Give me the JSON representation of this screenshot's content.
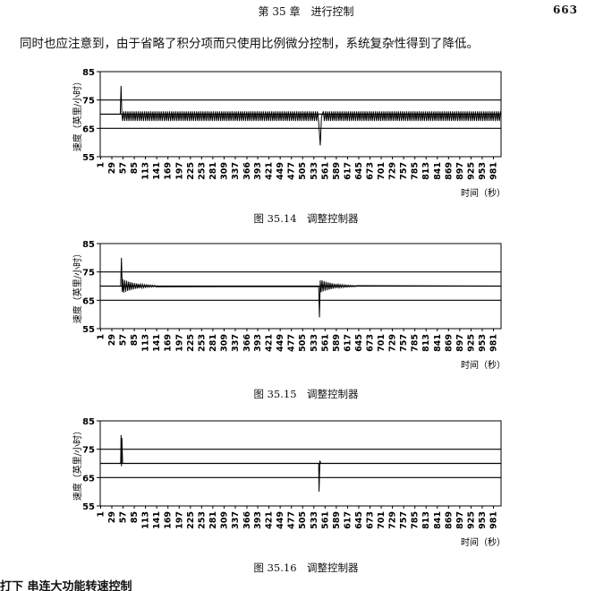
{
  "header": {
    "title": "第 35 章　进行控制",
    "page": "663"
  },
  "paragraph": "同时也应注意到，由于省略了积分项而只使用比例微分控制，系统复杂性得到了降低。",
  "figures": [
    {
      "caption": "图 35.14　调整控制器"
    },
    {
      "caption": "图 35.15　调整控制器"
    },
    {
      "caption": "图 35.16　调整控制器"
    }
  ],
  "footer_fragment": "打下  串连大功能转速控制",
  "chart_data": [
    {
      "type": "line",
      "title": "图 35.14　调整控制器",
      "ylabel": "速度（英里/小时）",
      "xlabel": "时间（秒）",
      "ylim": [
        55,
        85
      ],
      "yticks": [
        55,
        65,
        75,
        85
      ],
      "xticks": [
        1,
        29,
        57,
        85,
        113,
        141,
        169,
        197,
        225,
        253,
        281,
        309,
        337,
        366,
        393,
        421,
        449,
        477,
        505,
        533,
        561,
        589,
        617,
        645,
        673,
        701,
        729,
        757,
        785,
        813,
        841,
        869,
        897,
        925,
        953,
        981
      ],
      "reference_lines": [
        75,
        70,
        65
      ],
      "series": [
        {
          "values": [
            [
              0,
              70
            ],
            [
              50,
              70
            ],
            [
              52,
              80
            ],
            [
              54,
              70
            ],
            [
              56,
              68
            ],
            [
              1000,
              68
            ],
            [
              548,
              68
            ],
            [
              550,
              59
            ],
            [
              552,
              68
            ]
          ]
        }
      ],
      "note": "speed oscillates continuously between about 67.5 and 71 mph from t≈57 onward"
    },
    {
      "type": "line",
      "title": "图 35.15　调整控制器",
      "ylabel": "速度（英里/小时）",
      "xlabel": "时间（秒）",
      "ylim": [
        55,
        85
      ],
      "yticks": [
        55,
        65,
        75,
        85
      ],
      "xticks": [
        1,
        29,
        57,
        85,
        113,
        141,
        169,
        197,
        225,
        253,
        281,
        309,
        337,
        366,
        393,
        421,
        449,
        477,
        505,
        533,
        561,
        589,
        617,
        645,
        673,
        701,
        729,
        757,
        785,
        813,
        841,
        869,
        897,
        925,
        953,
        981
      ],
      "reference_lines": [
        75,
        70,
        65
      ],
      "series": [
        {
          "values": [
            [
              0,
              70
            ],
            [
              51,
              70
            ],
            [
              53,
              80
            ],
            [
              56,
              68
            ],
            [
              60,
              72
            ],
            [
              70,
              69
            ],
            [
              90,
              70
            ],
            [
              1000,
              70
            ],
            [
              545,
              70
            ],
            [
              547,
              59
            ],
            [
              550,
              72
            ],
            [
              560,
              69
            ],
            [
              600,
              70
            ]
          ]
        }
      ],
      "note": "damped oscillation after spikes at t≈57 and t≈547"
    },
    {
      "type": "line",
      "title": "图 35.16　调整控制器",
      "ylabel": "速度（英里/小时）",
      "xlabel": "时间（秒）",
      "ylim": [
        55,
        85
      ],
      "yticks": [
        55,
        65,
        75,
        85
      ],
      "xticks": [
        1,
        29,
        57,
        85,
        113,
        141,
        169,
        197,
        225,
        253,
        281,
        309,
        337,
        366,
        393,
        421,
        449,
        477,
        505,
        533,
        561,
        589,
        617,
        645,
        673,
        701,
        729,
        757,
        785,
        813,
        841,
        869,
        897,
        925,
        953,
        981
      ],
      "reference_lines": [
        75,
        70,
        65
      ],
      "series": [
        {
          "values": [
            [
              0,
              70
            ],
            [
              51,
              70
            ],
            [
              52,
              80
            ],
            [
              55,
              70
            ],
            [
              1000,
              70
            ],
            [
              545,
              70
            ],
            [
              546,
              60
            ],
            [
              549,
              70
            ]
          ]
        }
      ],
      "note": "single spikes at t≈52 and t≈546, otherwise flat at 70"
    }
  ]
}
